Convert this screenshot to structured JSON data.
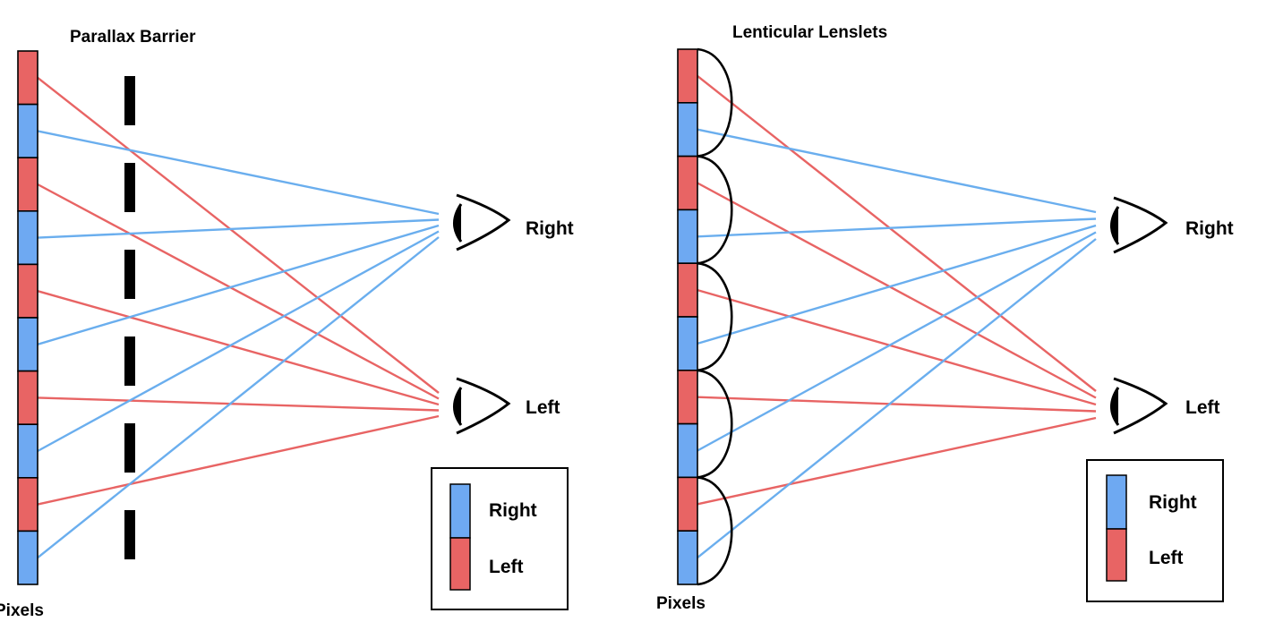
{
  "colors": {
    "right": "#6aaeee",
    "left": "#e86464",
    "pixel_right": "#6ea9f2",
    "pixel_left": "#e86464",
    "stroke": "#000000"
  },
  "left_panel": {
    "title": "Parallax Barrier",
    "pixels_label": "Pixels",
    "eye_right_label": "Right",
    "eye_left_label": "Left",
    "legend": {
      "right": "Right",
      "left": "Left"
    },
    "pixels": [
      "left",
      "right",
      "left",
      "right",
      "left",
      "right",
      "left",
      "right",
      "left",
      "right"
    ],
    "barrier_slits": 6
  },
  "right_panel": {
    "title": "Lenticular Lenslets",
    "pixels_label": "Pixels",
    "eye_right_label": "Right",
    "eye_left_label": "Left",
    "legend": {
      "right": "Right",
      "left": "Left"
    },
    "pixels": [
      "left",
      "right",
      "left",
      "right",
      "left",
      "right",
      "left",
      "right",
      "left",
      "right"
    ],
    "lenslets": 5
  }
}
